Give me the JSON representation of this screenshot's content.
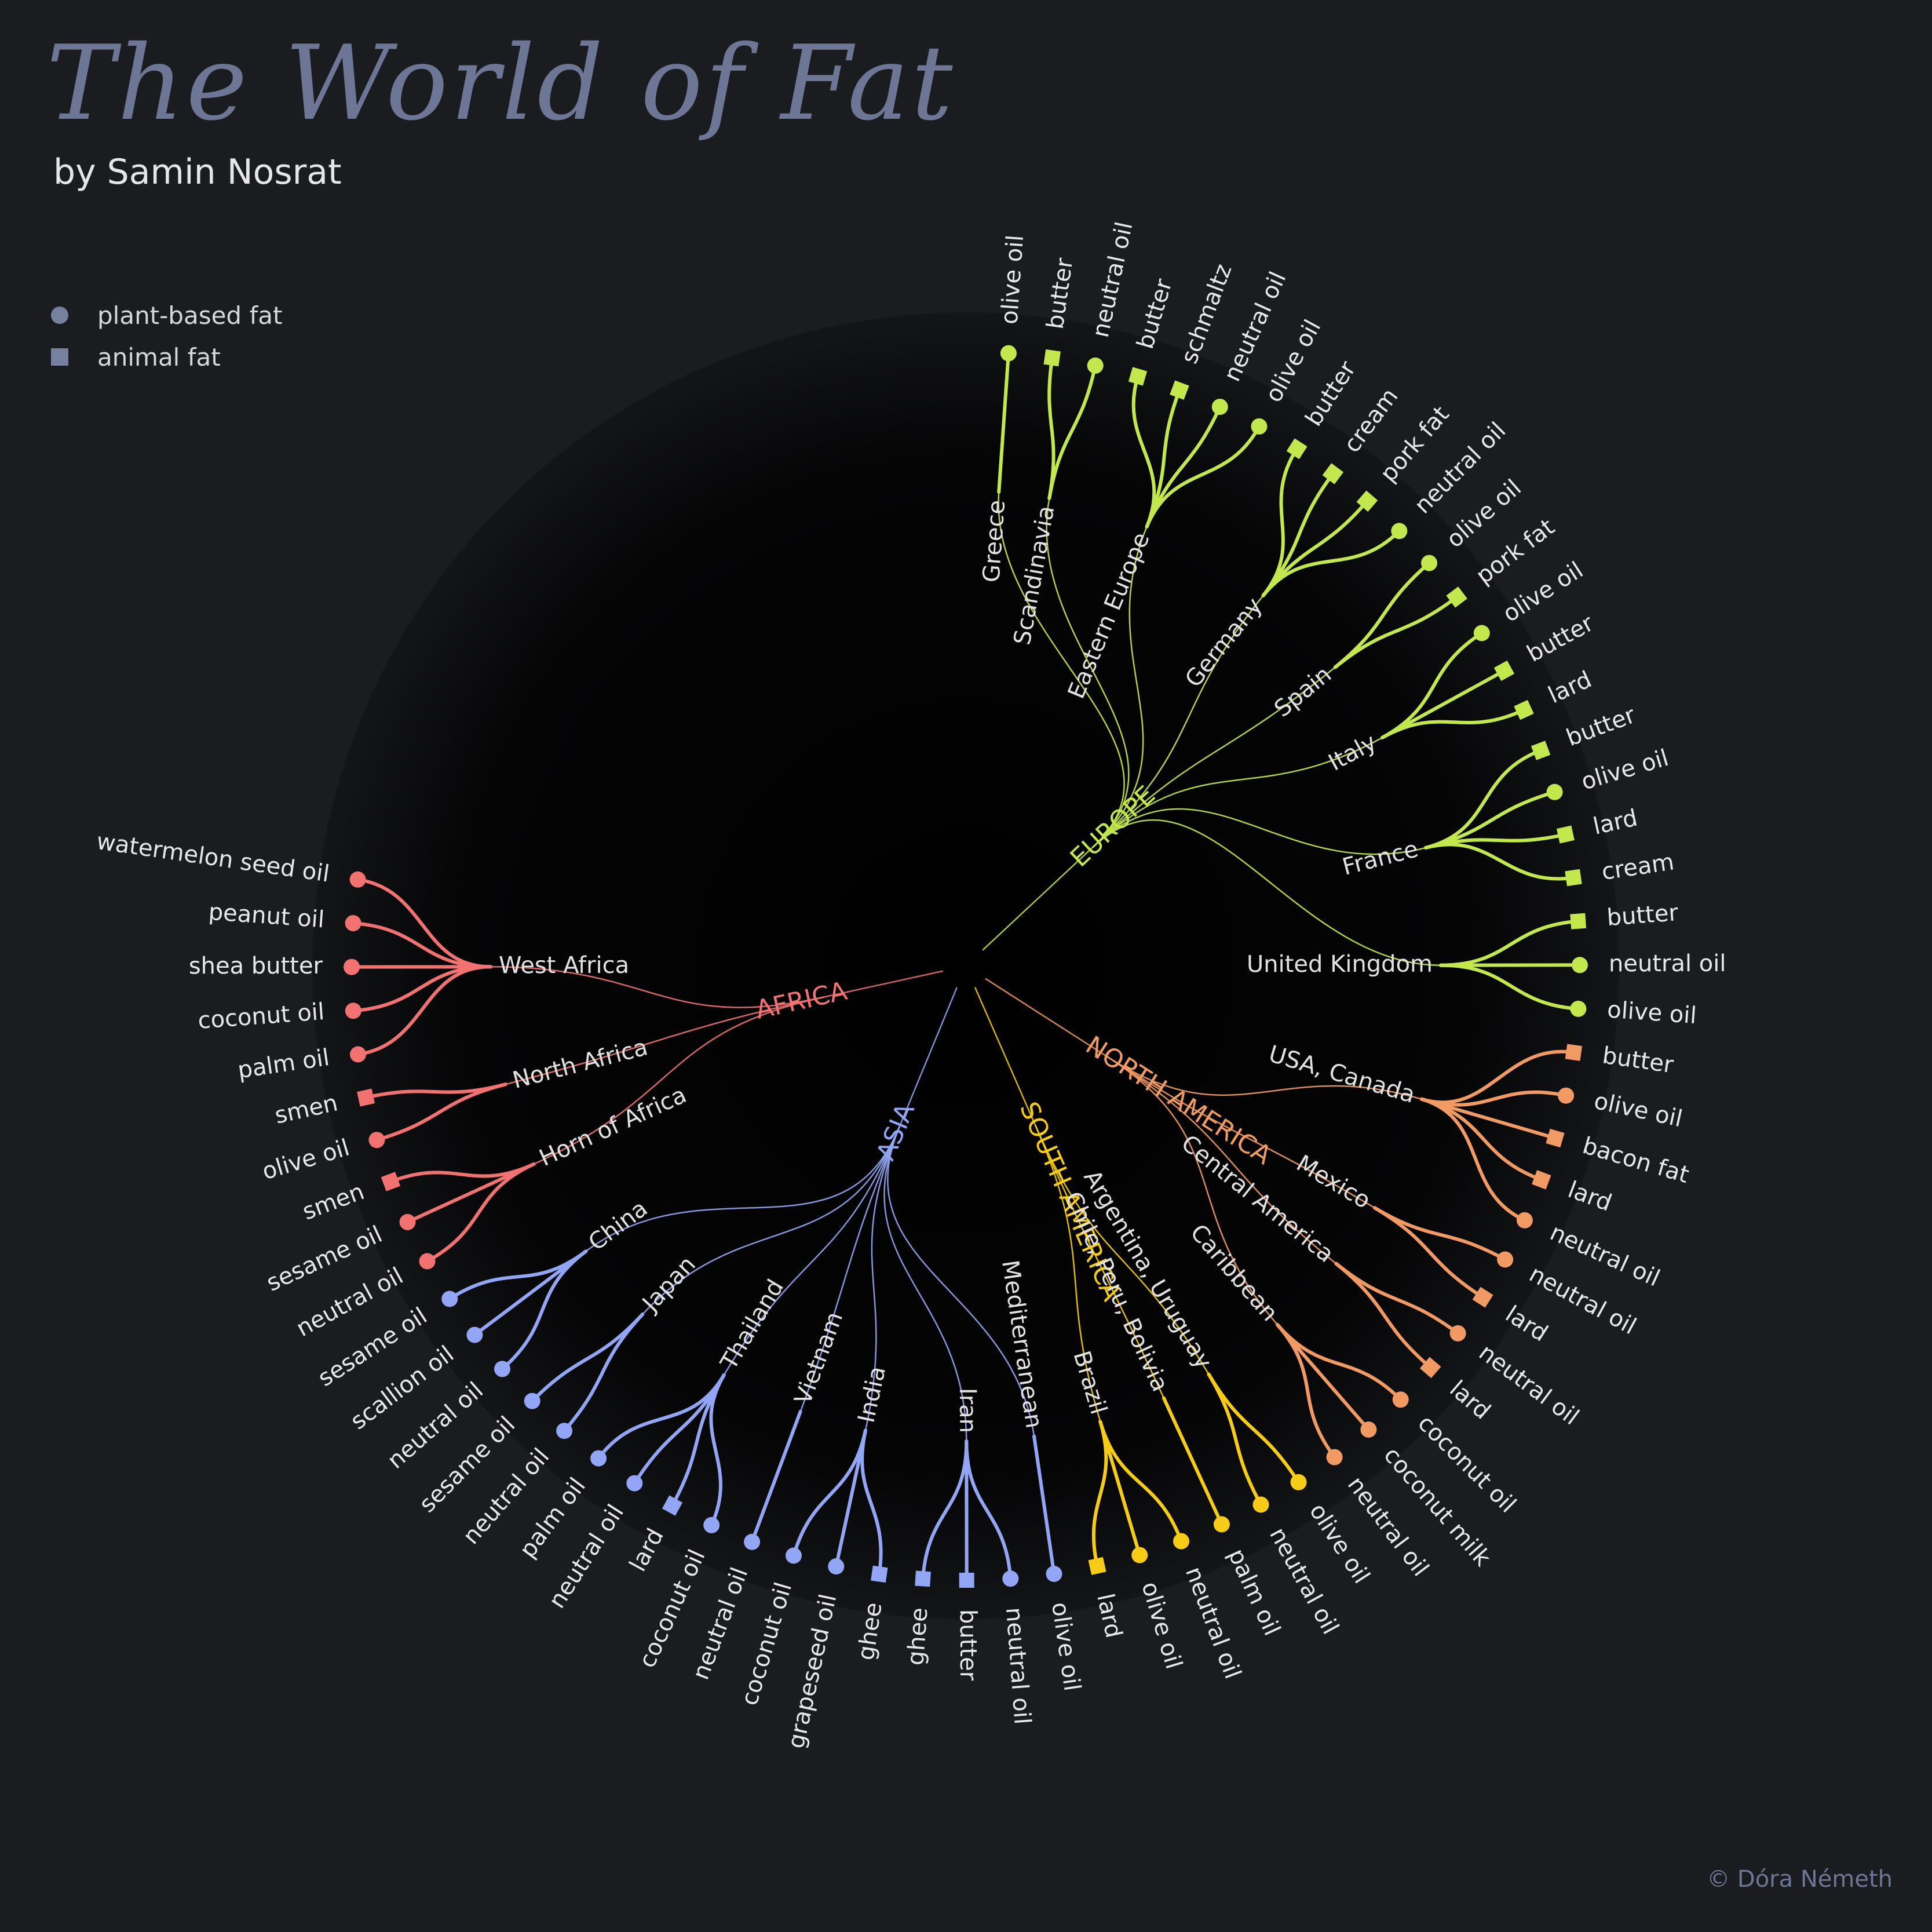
{
  "header": {
    "title": "The World of Fat",
    "subtitle": "by Samin Nosrat"
  },
  "legend": [
    {
      "shape": "circle",
      "label": "plant-based fat"
    },
    {
      "shape": "square",
      "label": "animal fat"
    }
  ],
  "credit": "© Dóra Németh",
  "colors": {
    "background": "#1b1c20",
    "Europe": "#c2e84e",
    "Africa": "#f27272",
    "Asia": "#93a6f5",
    "South America": "#f6cc16",
    "North America": "#f19a64"
  },
  "tree": [
    {
      "region": "EUROPE",
      "color_key": "Europe",
      "countries": [
        {
          "name": "Greece",
          "fats": [
            {
              "name": "olive oil",
              "type": "plant"
            }
          ]
        },
        {
          "name": "Scandinavia",
          "fats": [
            {
              "name": "butter",
              "type": "animal"
            },
            {
              "name": "neutral oil",
              "type": "plant"
            }
          ]
        },
        {
          "name": "Eastern Europe",
          "fats": [
            {
              "name": "butter",
              "type": "animal"
            },
            {
              "name": "schmaltz",
              "type": "animal"
            },
            {
              "name": "neutral oil",
              "type": "plant"
            },
            {
              "name": "olive oil",
              "type": "plant"
            }
          ]
        },
        {
          "name": "Germany",
          "fats": [
            {
              "name": "butter",
              "type": "animal"
            },
            {
              "name": "cream",
              "type": "animal"
            },
            {
              "name": "pork fat",
              "type": "animal"
            },
            {
              "name": "neutral oil",
              "type": "plant"
            }
          ]
        },
        {
          "name": "Spain",
          "fats": [
            {
              "name": "olive oil",
              "type": "plant"
            },
            {
              "name": "pork fat",
              "type": "animal"
            }
          ]
        },
        {
          "name": "Italy",
          "fats": [
            {
              "name": "olive oil",
              "type": "plant"
            },
            {
              "name": "butter",
              "type": "animal"
            },
            {
              "name": "lard",
              "type": "animal"
            }
          ]
        },
        {
          "name": "France",
          "fats": [
            {
              "name": "butter",
              "type": "animal"
            },
            {
              "name": "olive oil",
              "type": "plant"
            },
            {
              "name": "lard",
              "type": "animal"
            },
            {
              "name": "cream",
              "type": "animal"
            }
          ]
        },
        {
          "name": "United Kingdom",
          "fats": [
            {
              "name": "butter",
              "type": "animal"
            },
            {
              "name": "neutral oil",
              "type": "plant"
            },
            {
              "name": "olive oil",
              "type": "plant"
            }
          ]
        }
      ]
    },
    {
      "region": "NORTH AMERICA",
      "color_key": "North America",
      "countries": [
        {
          "name": "USA, Canada",
          "fats": [
            {
              "name": "butter",
              "type": "animal"
            },
            {
              "name": "olive oil",
              "type": "plant"
            },
            {
              "name": "bacon fat",
              "type": "animal"
            },
            {
              "name": "lard",
              "type": "animal"
            },
            {
              "name": "neutral oil",
              "type": "plant"
            }
          ]
        },
        {
          "name": "Mexico",
          "fats": [
            {
              "name": "neutral oil",
              "type": "plant"
            },
            {
              "name": "lard",
              "type": "animal"
            }
          ]
        },
        {
          "name": "Central America",
          "fats": [
            {
              "name": "neutral oil",
              "type": "plant"
            },
            {
              "name": "lard",
              "type": "animal"
            }
          ]
        },
        {
          "name": "Caribbean",
          "fats": [
            {
              "name": "coconut oil",
              "type": "plant"
            },
            {
              "name": "coconut milk",
              "type": "plant"
            },
            {
              "name": "neutral oil",
              "type": "plant"
            }
          ]
        }
      ]
    },
    {
      "region": "SOUTH AMERICA",
      "color_key": "South America",
      "countries": [
        {
          "name": "Argentina, Uruguay",
          "fats": [
            {
              "name": "olive oil",
              "type": "plant"
            },
            {
              "name": "neutral oil",
              "type": "plant"
            }
          ]
        },
        {
          "name": "Chile, Peru, Bolivia",
          "fats": [
            {
              "name": "palm oil",
              "type": "plant"
            }
          ]
        },
        {
          "name": "Brazil",
          "fats": [
            {
              "name": "neutral oil",
              "type": "plant"
            },
            {
              "name": "olive oil",
              "type": "plant"
            },
            {
              "name": "lard",
              "type": "animal"
            }
          ]
        }
      ]
    },
    {
      "region": "ASIA",
      "color_key": "Asia",
      "countries": [
        {
          "name": "Mediterranean",
          "fats": [
            {
              "name": "olive oil",
              "type": "plant"
            }
          ]
        },
        {
          "name": "Iran",
          "fats": [
            {
              "name": "neutral oil",
              "type": "plant"
            },
            {
              "name": "butter",
              "type": "animal"
            },
            {
              "name": "ghee",
              "type": "animal"
            }
          ]
        },
        {
          "name": "India",
          "fats": [
            {
              "name": "ghee",
              "type": "animal"
            },
            {
              "name": "grapeseed oil",
              "type": "plant"
            },
            {
              "name": "coconut oil",
              "type": "plant"
            }
          ]
        },
        {
          "name": "Vietnam",
          "fats": [
            {
              "name": "neutral oil",
              "type": "plant"
            }
          ]
        },
        {
          "name": "Thailand",
          "fats": [
            {
              "name": "coconut oil",
              "type": "plant"
            },
            {
              "name": "lard",
              "type": "animal"
            },
            {
              "name": "neutral oil",
              "type": "plant"
            },
            {
              "name": "palm oil",
              "type": "plant"
            }
          ]
        },
        {
          "name": "Japan",
          "fats": [
            {
              "name": "neutral oil",
              "type": "plant"
            },
            {
              "name": "sesame oil",
              "type": "plant"
            }
          ]
        },
        {
          "name": "China",
          "fats": [
            {
              "name": "neutral oil",
              "type": "plant"
            },
            {
              "name": "scallion oil",
              "type": "plant"
            },
            {
              "name": "sesame oil",
              "type": "plant"
            }
          ]
        }
      ]
    },
    {
      "region": "AFRICA",
      "color_key": "Africa",
      "countries": [
        {
          "name": "Horn of Africa",
          "fats": [
            {
              "name": "neutral oil",
              "type": "plant"
            },
            {
              "name": "sesame oil",
              "type": "plant"
            },
            {
              "name": "smen",
              "type": "animal"
            }
          ]
        },
        {
          "name": "North Africa",
          "fats": [
            {
              "name": "olive oil",
              "type": "plant"
            },
            {
              "name": "smen",
              "type": "animal"
            }
          ]
        },
        {
          "name": "West Africa",
          "fats": [
            {
              "name": "palm oil",
              "type": "plant"
            },
            {
              "name": "coconut oil",
              "type": "plant"
            },
            {
              "name": "shea butter",
              "type": "plant"
            },
            {
              "name": "peanut oil",
              "type": "plant"
            },
            {
              "name": "watermelon seed oil",
              "type": "plant"
            }
          ]
        }
      ]
    }
  ]
}
